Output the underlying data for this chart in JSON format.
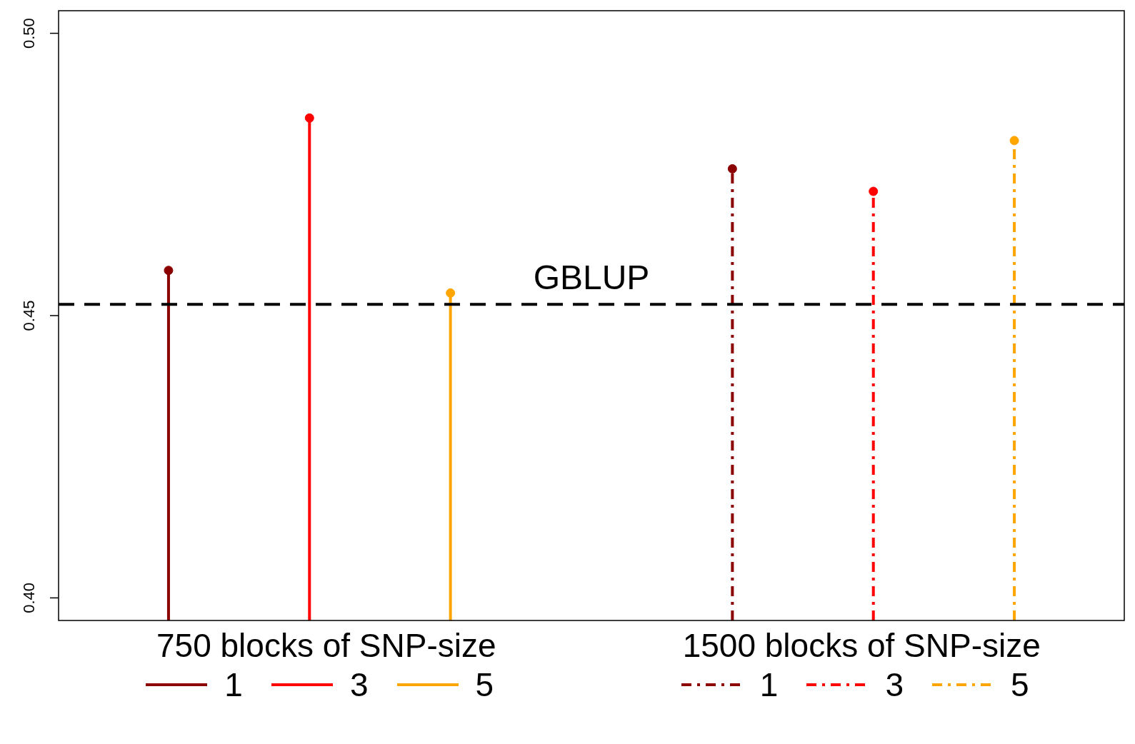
{
  "chart_data": {
    "type": "lollipop",
    "categories": [
      null,
      null,
      null,
      null,
      null,
      null,
      null
    ],
    "series": [
      {
        "name": "1",
        "color": "#8b0000",
        "line_style": "solid",
        "values": [
          0.458,
          null,
          null,
          null,
          null,
          null,
          null
        ]
      },
      {
        "name": "3",
        "color": "#ff0000",
        "line_style": "solid",
        "values": [
          null,
          0.485,
          null,
          null,
          null,
          null,
          null
        ]
      },
      {
        "name": "5",
        "color": "#ffa500",
        "line_style": "solid",
        "values": [
          null,
          null,
          0.454,
          null,
          null,
          null,
          null
        ]
      },
      {
        "name": "1",
        "color": "#8b0000",
        "line_style": "dashed",
        "values": [
          null,
          null,
          null,
          null,
          0.476,
          null,
          null
        ]
      },
      {
        "name": "3",
        "color": "#ff0000",
        "line_style": "dashed",
        "values": [
          null,
          null,
          null,
          null,
          null,
          0.472,
          null
        ]
      },
      {
        "name": "5",
        "color": "#ffa500",
        "line_style": "dashed",
        "values": [
          null,
          null,
          null,
          null,
          null,
          null,
          0.481
        ]
      }
    ],
    "legend_title": [
      "750 blocks of SNP-size",
      "1500 blocks of SNP-size"
    ],
    "ylim": [
      0.396,
      0.504
    ],
    "yticks": [
      {
        "value": 0.4,
        "label": "0.40"
      },
      {
        "value": 0.45,
        "label": "0.45"
      },
      {
        "value": 0.5,
        "label": "0.50"
      }
    ],
    "ref_lines": [
      {
        "axis": "y",
        "value": 0.452,
        "label": "GBLUP",
        "color": "#000000",
        "line_style": "dashed"
      }
    ],
    "marker": "circle",
    "grid": false,
    "legend": "bottom",
    "tick_labels": "y"
  }
}
